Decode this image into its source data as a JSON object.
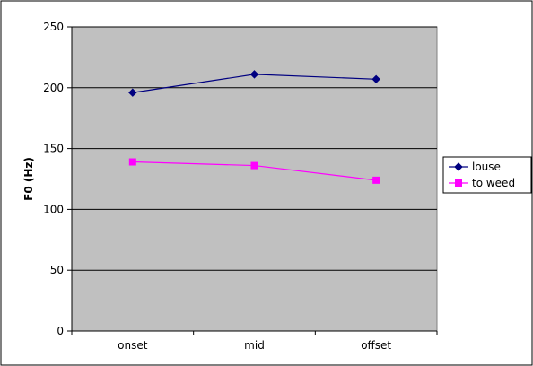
{
  "chart_data": {
    "type": "line",
    "title": "",
    "xlabel": "",
    "ylabel": "F0 (Hz)",
    "categories": [
      "onset",
      "mid",
      "offset"
    ],
    "ylim": [
      0,
      250
    ],
    "yticks": [
      0,
      50,
      100,
      150,
      200,
      250
    ],
    "grid": "horizontal",
    "legend": "right",
    "series": [
      {
        "name": "louse",
        "values": [
          196,
          211,
          207
        ],
        "color": "#000080",
        "marker": "diamond"
      },
      {
        "name": "to weed",
        "values": [
          139,
          136,
          124
        ],
        "color": "#ff00ff",
        "marker": "square"
      }
    ],
    "colors": {
      "plot_background": "#c0c0c0",
      "gridline": "#000000"
    }
  }
}
